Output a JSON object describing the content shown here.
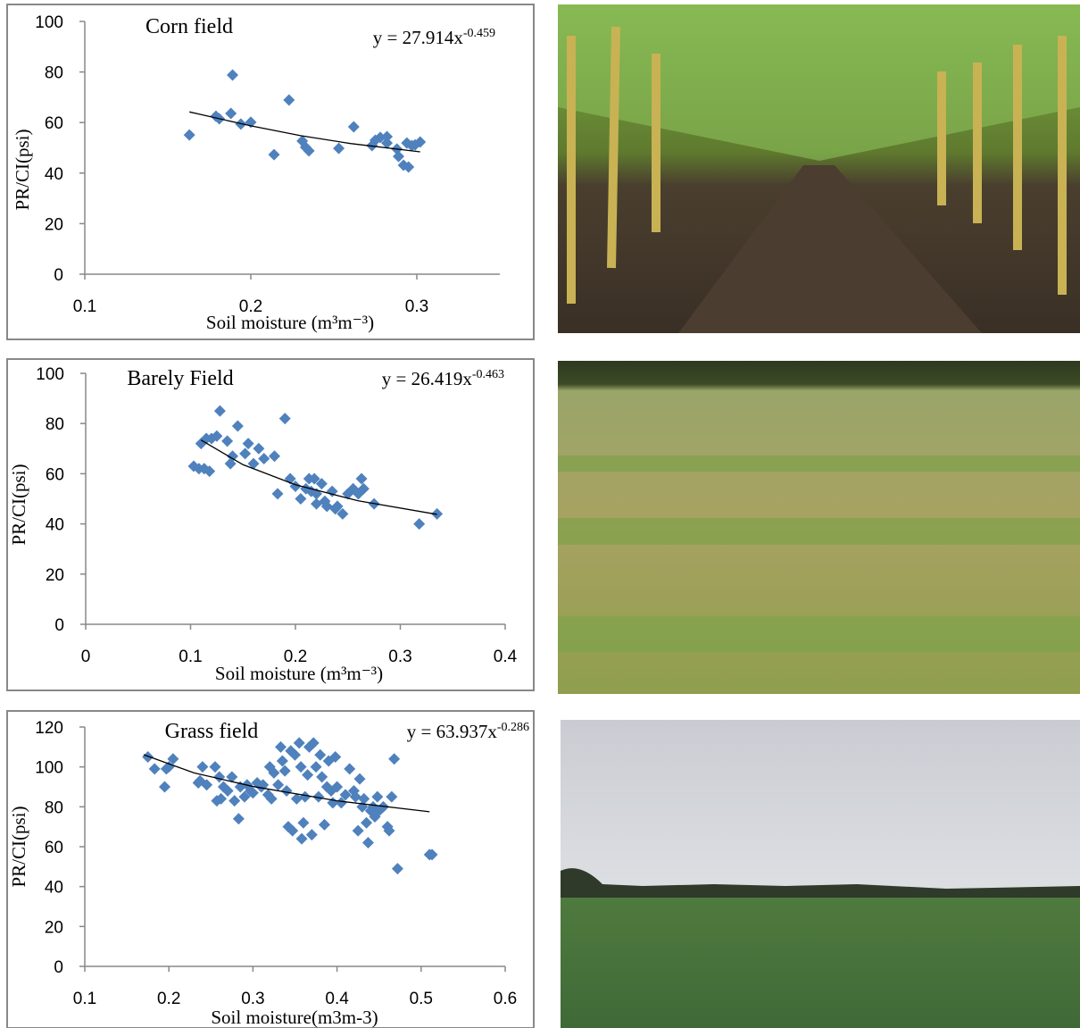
{
  "chart_data": [
    {
      "type": "scatter",
      "title": "Corn field",
      "equation": "y = 27.914x",
      "equation_exponent": "-0.459",
      "x_label": "Soil moisture (m³m⁻³)",
      "y_label": "PR/CI(psi)",
      "color": "#4f81bd",
      "xlim": [
        0.1,
        0.35
      ],
      "xticks": [
        0.1,
        0.2,
        0.3
      ],
      "ylim": [
        0,
        100
      ],
      "yticks": [
        0,
        20,
        40,
        60,
        80,
        100
      ],
      "x": [
        0.163,
        0.179,
        0.181,
        0.188,
        0.189,
        0.194,
        0.2,
        0.214,
        0.223,
        0.231,
        0.233,
        0.235,
        0.253,
        0.262,
        0.273,
        0.275,
        0.278,
        0.282,
        0.282,
        0.288,
        0.289,
        0.292,
        0.294,
        0.295,
        0.297,
        0.299,
        0.302
      ],
      "values": [
        55.1,
        62.5,
        61.5,
        63.6,
        78.8,
        59.4,
        60.1,
        47.3,
        68.9,
        52.7,
        50.2,
        48.8,
        49.8,
        58.3,
        50.9,
        53,
        54.1,
        54.4,
        51.9,
        49.5,
        46.6,
        43.1,
        51.9,
        42.4,
        50.9,
        51.2,
        52.3
      ],
      "fit": {
        "x": [
          0.163,
          0.2,
          0.23,
          0.26,
          0.302
        ],
        "values": [
          64.2,
          58.7,
          54.8,
          51.7,
          48.4
        ]
      }
    },
    {
      "type": "scatter",
      "title": "Barely Field",
      "equation": "y = 26.419x",
      "equation_exponent": "-0.463",
      "x_label": "Soil moisture (m³m⁻³)",
      "y_label": "PR/CI(psi)",
      "color": "#4f81bd",
      "xlim": [
        0,
        0.4
      ],
      "xticks": [
        0,
        0.1,
        0.2,
        0.3,
        0.4
      ],
      "ylim": [
        0,
        100
      ],
      "yticks": [
        0,
        20,
        40,
        60,
        80,
        100
      ],
      "x": [
        0.103,
        0.108,
        0.11,
        0.113,
        0.115,
        0.118,
        0.12,
        0.125,
        0.128,
        0.135,
        0.138,
        0.14,
        0.145,
        0.152,
        0.155,
        0.16,
        0.165,
        0.17,
        0.18,
        0.183,
        0.19,
        0.195,
        0.2,
        0.205,
        0.21,
        0.213,
        0.215,
        0.218,
        0.22,
        0.22,
        0.225,
        0.228,
        0.23,
        0.235,
        0.238,
        0.24,
        0.245,
        0.25,
        0.255,
        0.26,
        0.263,
        0.265,
        0.275,
        0.318,
        0.335
      ],
      "values": [
        63,
        62,
        72,
        62,
        74,
        61,
        74,
        75,
        85,
        73,
        64,
        67,
        79,
        68,
        72,
        64,
        70,
        66,
        67,
        52,
        82,
        58,
        55,
        50,
        54,
        58,
        53,
        58,
        52,
        48,
        56,
        49,
        47,
        53,
        46,
        47,
        44,
        52,
        54,
        52,
        58,
        54,
        48,
        40,
        44
      ],
      "fit": {
        "x": [
          0.11,
          0.15,
          0.2,
          0.26,
          0.335
        ],
        "values": [
          73.4,
          63.6,
          55.6,
          49.2,
          43.8
        ]
      }
    },
    {
      "type": "scatter",
      "title": "Grass field",
      "equation": "y = 63.937x",
      "equation_exponent": "-0.286",
      "x_label": "Soil moisture(m3m-3)",
      "y_label": "PR/CI(psi)",
      "color": "#4f81bd",
      "xlim": [
        0.1,
        0.6
      ],
      "xticks": [
        0.1,
        0.2,
        0.3,
        0.4,
        0.5,
        0.6
      ],
      "ylim": [
        0,
        120
      ],
      "yticks": [
        0,
        20,
        40,
        60,
        80,
        100,
        120
      ],
      "x": [
        0.175,
        0.183,
        0.195,
        0.197,
        0.2,
        0.205,
        0.235,
        0.237,
        0.24,
        0.245,
        0.255,
        0.257,
        0.26,
        0.262,
        0.265,
        0.27,
        0.275,
        0.278,
        0.283,
        0.285,
        0.29,
        0.293,
        0.297,
        0.3,
        0.305,
        0.31,
        0.312,
        0.318,
        0.32,
        0.322,
        0.325,
        0.33,
        0.333,
        0.335,
        0.338,
        0.34,
        0.342,
        0.345,
        0.347,
        0.35,
        0.352,
        0.355,
        0.357,
        0.358,
        0.36,
        0.362,
        0.365,
        0.367,
        0.37,
        0.372,
        0.375,
        0.378,
        0.38,
        0.382,
        0.385,
        0.388,
        0.39,
        0.393,
        0.395,
        0.398,
        0.4,
        0.405,
        0.41,
        0.415,
        0.42,
        0.422,
        0.425,
        0.427,
        0.43,
        0.432,
        0.435,
        0.437,
        0.44,
        0.443,
        0.445,
        0.448,
        0.45,
        0.455,
        0.46,
        0.462,
        0.465,
        0.468,
        0.472,
        0.51,
        0.513
      ],
      "values": [
        105,
        99,
        90,
        99,
        100,
        104,
        92,
        93,
        100,
        91,
        100,
        83,
        95,
        84,
        90,
        88,
        95,
        83,
        74,
        90,
        85,
        91,
        88,
        87,
        92,
        90,
        91,
        86,
        100,
        84,
        97,
        91,
        110,
        103,
        98,
        88,
        70,
        108,
        68,
        106,
        84,
        112,
        100,
        64,
        72,
        85,
        96,
        110,
        66,
        112,
        100,
        85,
        106,
        95,
        71,
        90,
        103,
        88,
        82,
        105,
        90,
        82,
        86,
        99,
        88,
        85,
        68,
        94,
        80,
        84,
        72,
        62,
        78,
        80,
        75,
        85,
        78,
        80,
        70,
        68,
        85,
        104,
        49,
        56,
        56
      ],
      "fit": {
        "x": [
          0.17,
          0.23,
          0.3,
          0.4,
          0.51
        ],
        "values": [
          106.1,
          97.0,
          90.2,
          83.0,
          77.5
        ]
      }
    }
  ]
}
